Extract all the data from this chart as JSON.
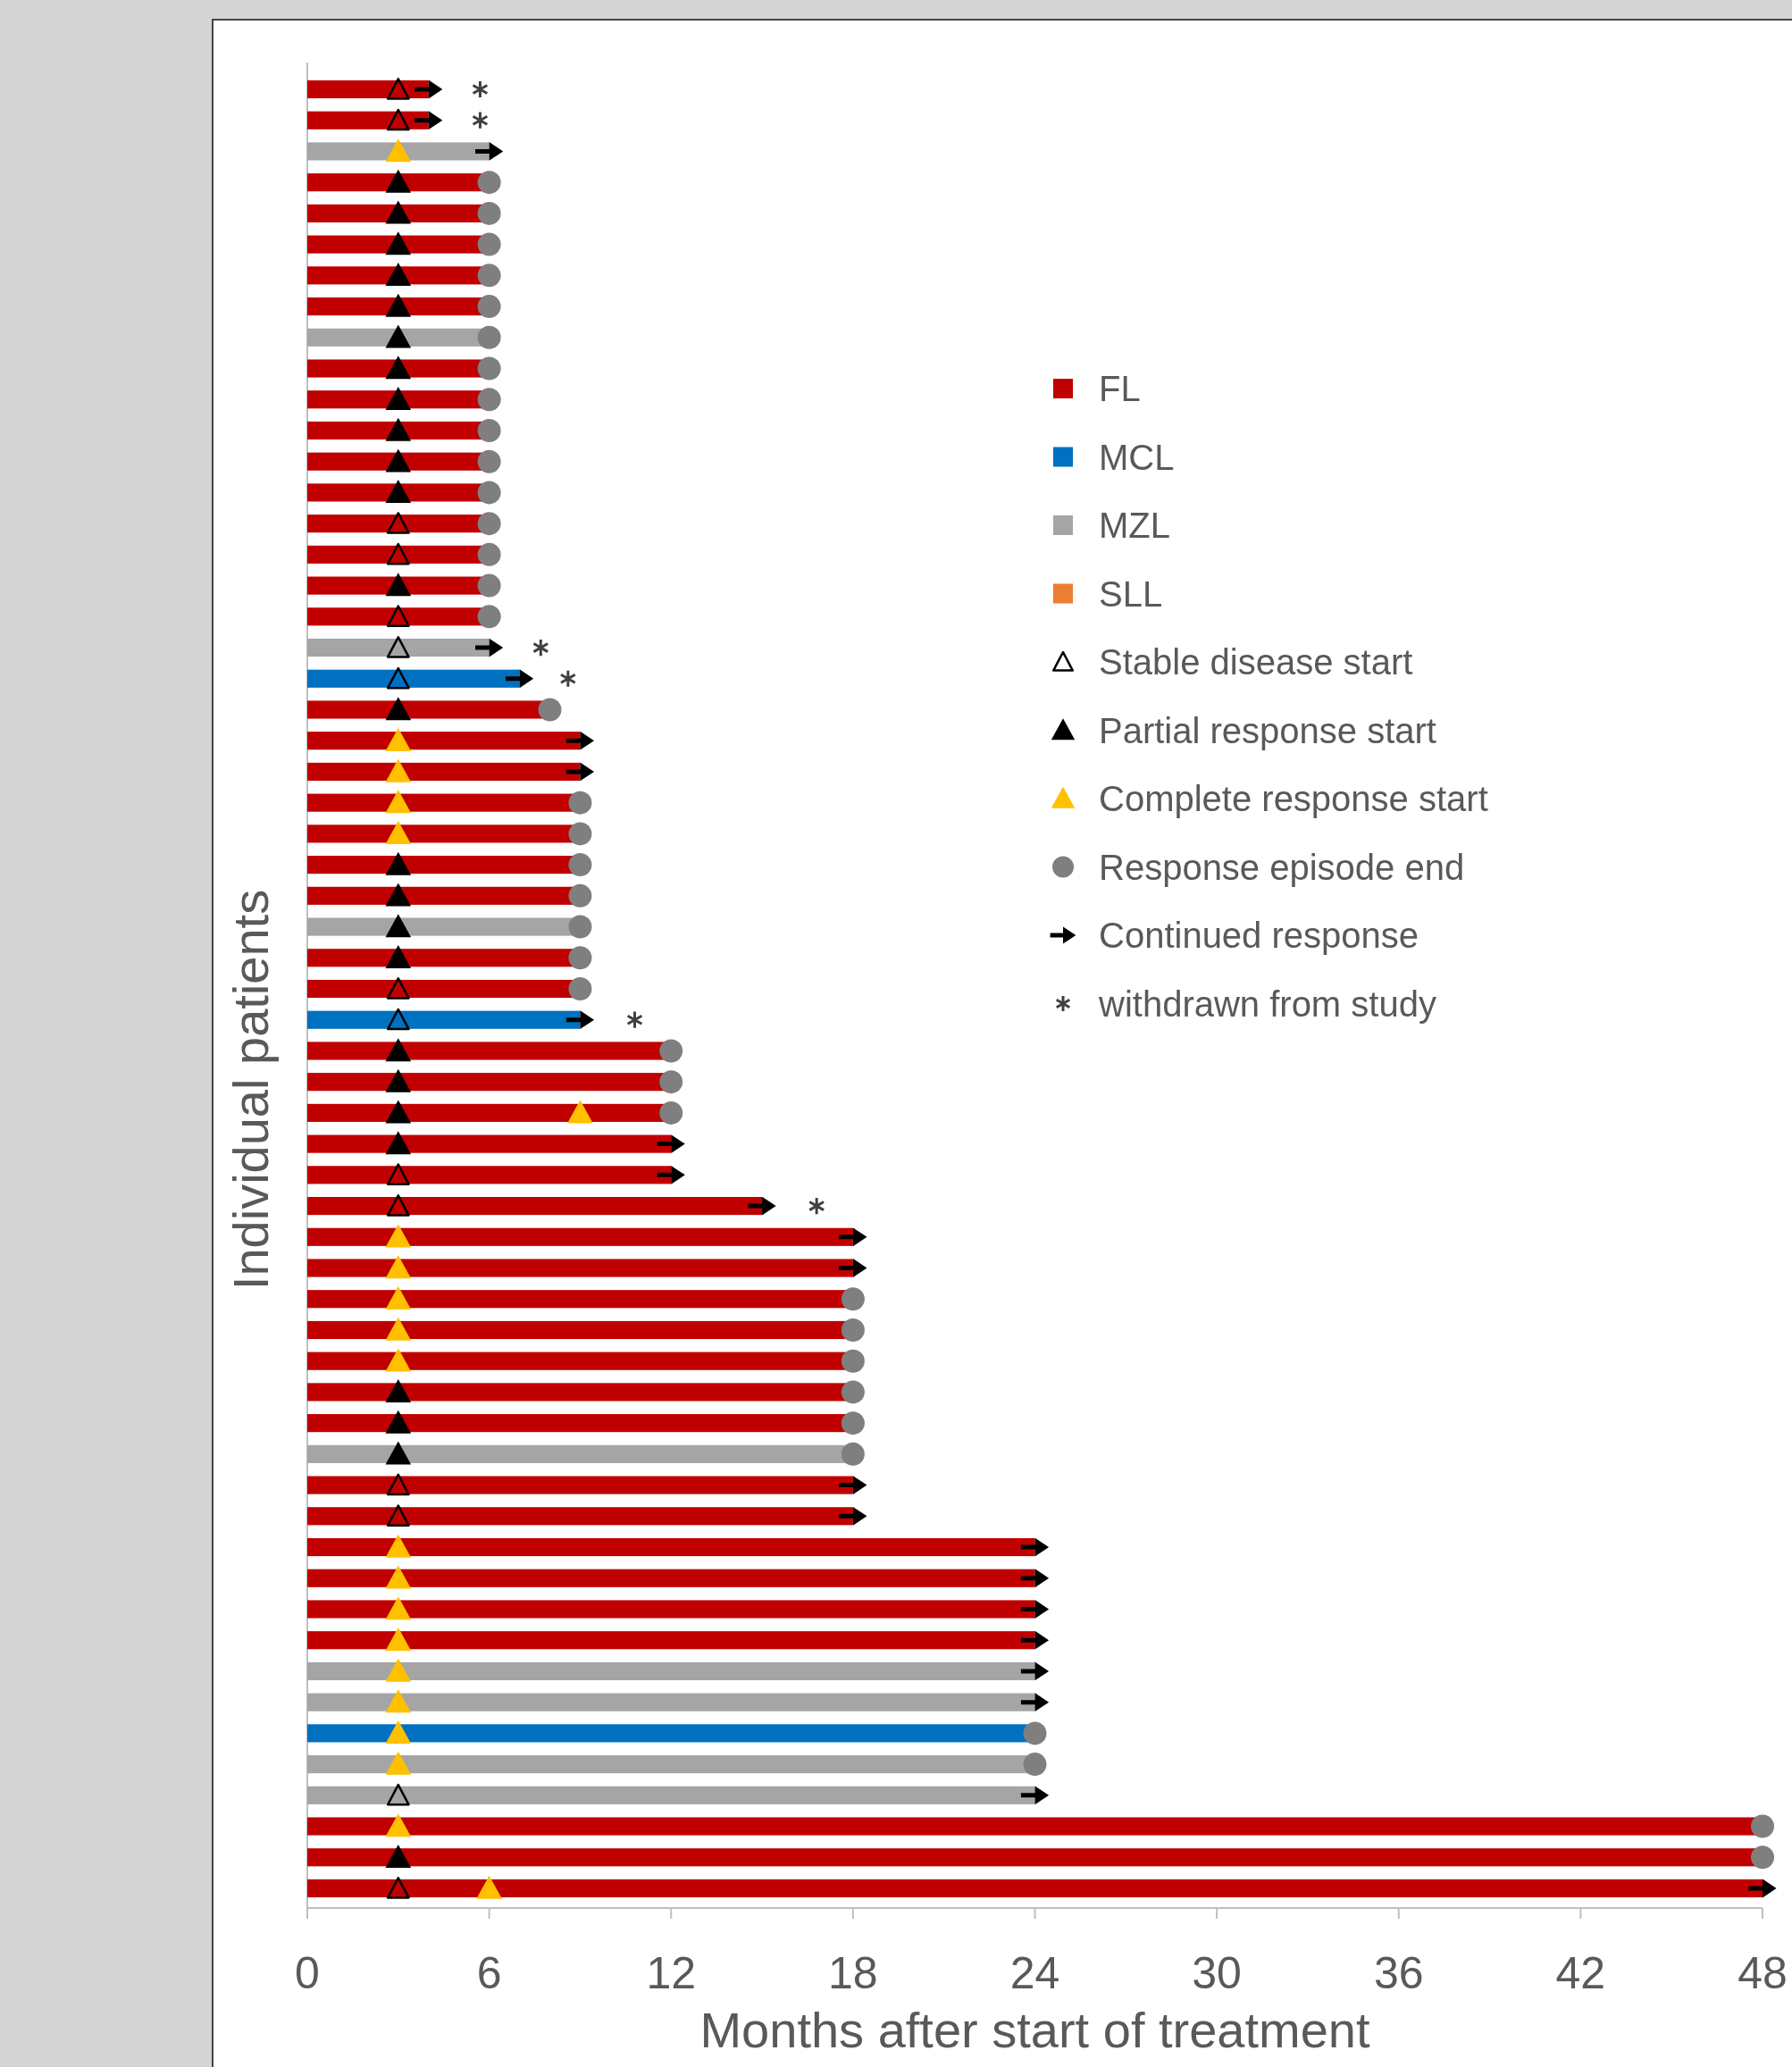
{
  "chart_data": {
    "type": "bar",
    "orientation": "horizontal",
    "xlabel": "Months after start of treatment",
    "ylabel": "Individual patients",
    "categories": [
      null,
      null,
      null,
      null,
      null,
      null,
      null,
      null,
      null,
      null,
      null,
      null,
      null,
      null,
      null,
      null,
      null,
      null,
      null,
      null,
      null,
      null,
      null,
      null,
      null,
      null,
      null,
      null,
      null,
      null,
      null,
      null,
      null,
      null,
      null,
      null,
      null,
      null,
      null,
      null,
      null,
      null,
      null,
      null,
      null,
      null,
      null,
      null,
      null,
      null,
      null,
      null,
      null,
      null,
      null,
      null,
      null,
      null,
      null
    ],
    "xlim": [
      0,
      48
    ],
    "xticks": [
      0,
      6,
      12,
      18,
      24,
      30,
      36,
      42,
      48
    ],
    "grid": false,
    "legend": "right",
    "series": [
      {
        "name": "FL",
        "color": "#c00000",
        "values": [
          4,
          4,
          null,
          6,
          6,
          6,
          6,
          6,
          null,
          6,
          6,
          6,
          6,
          6,
          6,
          6,
          6,
          6,
          null,
          null,
          8,
          9,
          9,
          9,
          9,
          9,
          9,
          null,
          9,
          9,
          null,
          12,
          12,
          12,
          12,
          12,
          15,
          18,
          18,
          18,
          18,
          18,
          18,
          18,
          null,
          18,
          18,
          24,
          24,
          24,
          24,
          null,
          null,
          null,
          null,
          null,
          48,
          48,
          48
        ]
      },
      {
        "name": "MCL",
        "color": "#0070c0",
        "values": [
          null,
          null,
          null,
          null,
          null,
          null,
          null,
          null,
          null,
          null,
          null,
          null,
          null,
          null,
          null,
          null,
          null,
          null,
          null,
          7,
          null,
          null,
          null,
          null,
          null,
          null,
          null,
          null,
          null,
          null,
          9,
          null,
          null,
          null,
          null,
          null,
          null,
          null,
          null,
          null,
          null,
          null,
          null,
          null,
          null,
          null,
          null,
          null,
          null,
          null,
          null,
          null,
          null,
          24,
          null,
          null,
          null,
          null,
          null
        ]
      },
      {
        "name": "MZL",
        "color": "#a5a5a5",
        "values": [
          null,
          null,
          6,
          null,
          null,
          null,
          null,
          null,
          6,
          null,
          null,
          null,
          null,
          null,
          null,
          null,
          null,
          null,
          6,
          null,
          null,
          null,
          null,
          null,
          null,
          null,
          null,
          9,
          null,
          null,
          null,
          null,
          null,
          null,
          null,
          null,
          null,
          null,
          null,
          null,
          null,
          null,
          null,
          null,
          18,
          null,
          null,
          null,
          null,
          null,
          null,
          24,
          24,
          null,
          24,
          24,
          null,
          null,
          null
        ]
      },
      {
        "name": "SLL",
        "color": "#ed7d31",
        "values": [
          null,
          null,
          null,
          null,
          null,
          null,
          null,
          null,
          null,
          null,
          null,
          null,
          null,
          null,
          null,
          null,
          null,
          null,
          null,
          null,
          null,
          null,
          null,
          null,
          null,
          null,
          null,
          null,
          null,
          null,
          null,
          null,
          null,
          null,
          null,
          null,
          null,
          null,
          null,
          null,
          null,
          null,
          null,
          null,
          null,
          null,
          null,
          null,
          null,
          null,
          null,
          null,
          null,
          null,
          null,
          null,
          null,
          null,
          null
        ]
      },
      {
        "name": "Stable disease start",
        "type": "scatter",
        "marker": "triangle-open",
        "color": "#000000",
        "values": [
          3,
          3,
          null,
          null,
          null,
          null,
          null,
          null,
          null,
          null,
          null,
          null,
          null,
          null,
          3,
          3,
          null,
          3,
          3,
          3,
          null,
          null,
          null,
          null,
          null,
          null,
          null,
          null,
          null,
          3,
          3,
          null,
          null,
          null,
          null,
          3,
          3,
          null,
          null,
          null,
          null,
          null,
          null,
          null,
          null,
          3,
          3,
          null,
          null,
          null,
          null,
          null,
          null,
          null,
          null,
          3,
          null,
          null,
          3
        ]
      },
      {
        "name": "Partial response start",
        "type": "scatter",
        "marker": "triangle",
        "color": "#000000",
        "values": [
          null,
          null,
          null,
          3,
          3,
          3,
          3,
          3,
          3,
          3,
          3,
          3,
          3,
          3,
          null,
          null,
          3,
          null,
          null,
          null,
          3,
          null,
          null,
          null,
          null,
          3,
          3,
          3,
          3,
          null,
          null,
          3,
          3,
          3,
          3,
          null,
          null,
          null,
          null,
          null,
          null,
          null,
          3,
          3,
          3,
          null,
          null,
          null,
          null,
          null,
          null,
          null,
          null,
          null,
          null,
          null,
          null,
          3,
          null
        ]
      },
      {
        "name": "Complete response start",
        "type": "scatter",
        "marker": "triangle",
        "color": "#ffc000",
        "values": [
          null,
          null,
          3,
          null,
          null,
          null,
          null,
          null,
          null,
          null,
          null,
          null,
          null,
          null,
          null,
          null,
          null,
          null,
          null,
          null,
          null,
          3,
          3,
          3,
          3,
          null,
          null,
          null,
          null,
          null,
          null,
          null,
          null,
          9,
          null,
          null,
          null,
          3,
          3,
          3,
          3,
          3,
          null,
          null,
          null,
          null,
          null,
          3,
          3,
          3,
          3,
          3,
          3,
          3,
          3,
          null,
          3,
          null,
          6
        ]
      },
      {
        "name": "Response episode end",
        "type": "scatter",
        "marker": "circle",
        "color": "#7f7f7f",
        "values": [
          null,
          null,
          null,
          6,
          6,
          6,
          6,
          6,
          6,
          6,
          6,
          6,
          6,
          6,
          6,
          6,
          6,
          6,
          null,
          null,
          8,
          null,
          null,
          9,
          9,
          9,
          9,
          9,
          9,
          9,
          null,
          12,
          12,
          12,
          null,
          null,
          null,
          null,
          null,
          18,
          18,
          18,
          18,
          18,
          18,
          null,
          null,
          null,
          null,
          null,
          null,
          null,
          null,
          24,
          24,
          null,
          48,
          48,
          null
        ]
      },
      {
        "name": "Continued response",
        "type": "scatter",
        "color": "#000000",
        "values": [
          4,
          4,
          6,
          null,
          null,
          null,
          null,
          null,
          null,
          null,
          null,
          null,
          null,
          null,
          null,
          null,
          null,
          null,
          6,
          7,
          null,
          9,
          9,
          null,
          null,
          null,
          null,
          null,
          null,
          null,
          9,
          null,
          null,
          null,
          12,
          12,
          15,
          18,
          18,
          null,
          null,
          null,
          null,
          null,
          null,
          18,
          18,
          24,
          24,
          24,
          24,
          24,
          24,
          null,
          null,
          24,
          null,
          null,
          48
        ]
      },
      {
        "name": "withdrawn from study",
        "type": "scatter",
        "marker": "cross",
        "color": "#404040",
        "values": [
          5.7,
          5.7,
          null,
          null,
          null,
          null,
          null,
          null,
          null,
          null,
          null,
          null,
          null,
          null,
          null,
          null,
          null,
          null,
          7.7,
          8.6,
          null,
          null,
          null,
          null,
          null,
          null,
          null,
          null,
          null,
          null,
          10.8,
          null,
          null,
          null,
          null,
          null,
          16.8,
          null,
          null,
          null,
          null,
          null,
          null,
          null,
          null,
          null,
          null,
          null,
          null,
          null,
          null,
          null,
          null,
          null,
          null,
          null,
          null,
          null,
          null
        ]
      }
    ]
  }
}
